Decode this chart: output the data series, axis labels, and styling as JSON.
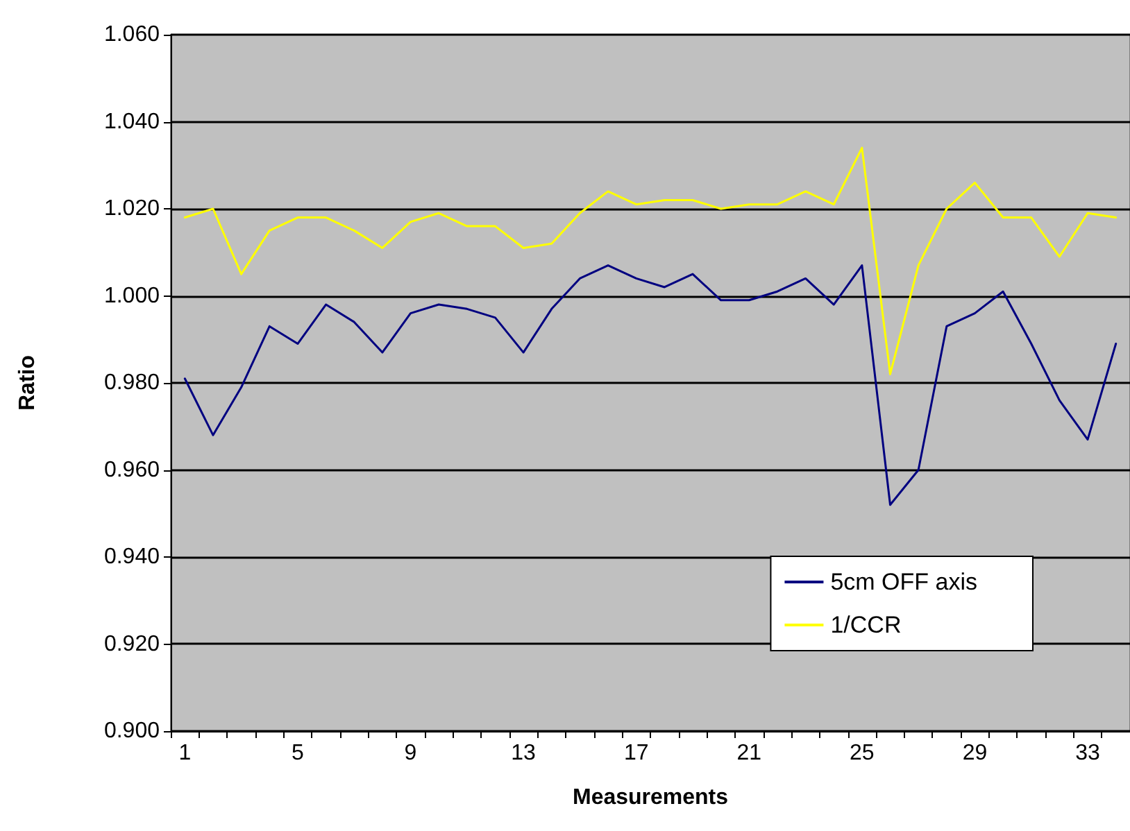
{
  "chart_data": {
    "type": "line",
    "xlabel": "Measurements",
    "ylabel": "Ratio",
    "categories": [
      "1",
      null,
      null,
      null,
      "5",
      null,
      null,
      null,
      "9",
      null,
      null,
      null,
      "13",
      null,
      null,
      null,
      "17",
      null,
      null,
      null,
      "21",
      null,
      null,
      null,
      "25",
      null,
      null,
      null,
      "29",
      null,
      null,
      null,
      "33",
      null
    ],
    "series": [
      {
        "name": "5cm OFF axis",
        "color": "#000080",
        "values": [
          0.981,
          0.968,
          0.979,
          0.993,
          0.989,
          0.998,
          0.994,
          0.987,
          0.996,
          0.998,
          0.997,
          0.995,
          0.987,
          0.997,
          1.004,
          1.007,
          1.004,
          1.002,
          1.005,
          0.999,
          0.999,
          1.001,
          1.004,
          0.998,
          1.007,
          0.952,
          0.96,
          0.993,
          0.996,
          1.001,
          0.989,
          0.976,
          0.967,
          0.989
        ]
      },
      {
        "name": "1/CCR",
        "color": "#ffff00",
        "values": [
          1.018,
          1.02,
          1.005,
          1.015,
          1.018,
          1.018,
          1.015,
          1.011,
          1.017,
          1.019,
          1.016,
          1.016,
          1.011,
          1.012,
          1.019,
          1.024,
          1.021,
          1.022,
          1.022,
          1.02,
          1.021,
          1.021,
          1.024,
          1.021,
          1.034,
          0.982,
          1.007,
          1.02,
          1.026,
          1.018,
          1.018,
          1.009,
          1.019,
          1.018
        ]
      }
    ],
    "ylim": [
      0.9,
      1.06
    ],
    "yticks": [
      {
        "value": 0.9,
        "label": "0.900"
      },
      {
        "value": 0.92,
        "label": "0.920"
      },
      {
        "value": 0.94,
        "label": "0.940"
      },
      {
        "value": 0.96,
        "label": "0.960"
      },
      {
        "value": 0.98,
        "label": "0.980"
      },
      {
        "value": 1.0,
        "label": "1.000"
      },
      {
        "value": 1.02,
        "label": "1.020"
      },
      {
        "value": 1.04,
        "label": "1.040"
      },
      {
        "value": 1.06,
        "label": "1.060"
      }
    ],
    "grid": "y",
    "legend": "bottom right",
    "marker": "none",
    "line_style": "solid"
  }
}
